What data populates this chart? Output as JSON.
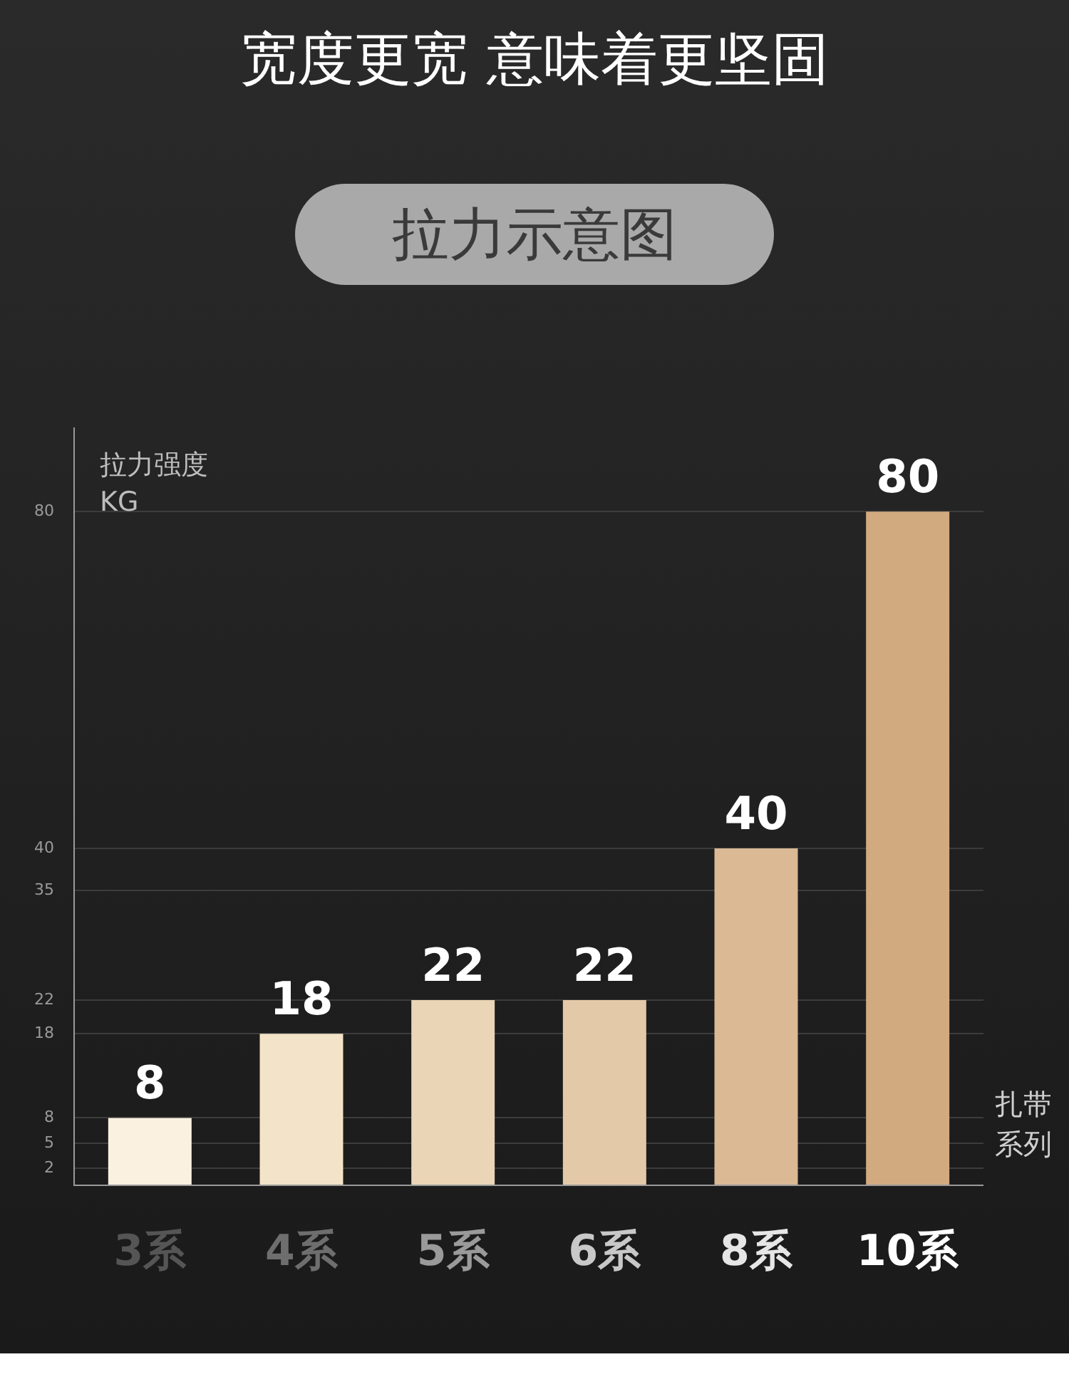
{
  "chart_data": {
    "type": "bar",
    "title": "宽度更宽 意味着更坚固",
    "subtitle": "拉力示意图",
    "xlabel": "扎带系列",
    "ylabel": "拉力强度\nKG",
    "categories": [
      "3系",
      "4系",
      "5系",
      "6系",
      "8系",
      "10系"
    ],
    "values": [
      8,
      18,
      22,
      22,
      40,
      80
    ],
    "colors": [
      "#fbf1e0",
      "#f3e3c8",
      "#ead5b7",
      "#e4c9a8",
      "#dab994",
      "#d2aa80"
    ],
    "ylim": [
      0,
      90
    ],
    "yticks": [
      2,
      5,
      8,
      18,
      22,
      35,
      40,
      80
    ],
    "grid": "y",
    "data_labels": true
  }
}
